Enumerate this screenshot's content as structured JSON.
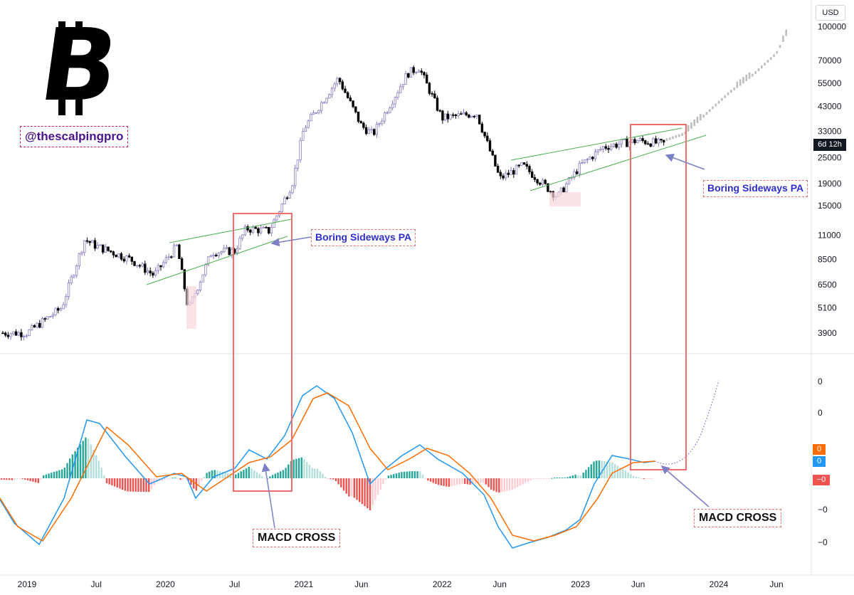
{
  "header": {
    "logo_glyph": "B",
    "handle": "@thescalpingpro",
    "currency": "USD",
    "timer": "6d 12h"
  },
  "annotations": {
    "pa_left": "Boring Sideways PA",
    "pa_right": "Boring Sideways PA",
    "macd_left": "MACD CROSS",
    "macd_right": "MACD CROSS"
  },
  "colors": {
    "up_candle": "#8e7cc3",
    "down_candle": "#000000",
    "projection": "#bdbdbd",
    "macd_line": "#2196f3",
    "signal_line": "#ff6d00",
    "hist_pos": "#26a69a",
    "hist_neg": "#ef5350",
    "channel": "#4caf50",
    "box": "#f26d6d",
    "annotation_text": "#2e2ecc",
    "handle_text": "#4a148c",
    "arrow": "#7a7fc6"
  },
  "chart_data": [
    {
      "type": "candlestick",
      "title": "",
      "log_scale": true,
      "price_axis_ticks": [
        "100000",
        "70000",
        "55000",
        "43000",
        "33000",
        "25000",
        "19000",
        "15000",
        "11000",
        "8500",
        "6500",
        "5100",
        "3900"
      ],
      "time_axis_ticks": [
        "2019",
        "Jul",
        "2020",
        "Jul",
        "2021",
        "Jun",
        "2022",
        "Jun",
        "2023",
        "Jun",
        "2024",
        "Jun"
      ],
      "approx_weekly_close_path": [
        [
          "2019-01",
          3900
        ],
        [
          "2019-04",
          5100
        ],
        [
          "2019-06",
          10500
        ],
        [
          "2019-07",
          9800
        ],
        [
          "2019-10",
          8500
        ],
        [
          "2019-12",
          7200
        ],
        [
          "2020-02",
          9800
        ],
        [
          "2020-03",
          5000
        ],
        [
          "2020-05",
          9200
        ],
        [
          "2020-07",
          9300
        ],
        [
          "2020-08",
          11800
        ],
        [
          "2020-10",
          11500
        ],
        [
          "2020-12",
          19000
        ],
        [
          "2021-01",
          34000
        ],
        [
          "2021-04",
          58000
        ],
        [
          "2021-06",
          35000
        ],
        [
          "2021-07",
          32000
        ],
        [
          "2021-10",
          61000
        ],
        [
          "2021-11",
          65000
        ],
        [
          "2022-01",
          38000
        ],
        [
          "2022-04",
          40000
        ],
        [
          "2022-06",
          20000
        ],
        [
          "2022-08",
          23000
        ],
        [
          "2022-11",
          16500
        ],
        [
          "2023-01",
          23000
        ],
        [
          "2023-03",
          28000
        ],
        [
          "2023-06",
          30000
        ],
        [
          "2023-08",
          29000
        ]
      ],
      "projection": [
        [
          "2023-10",
          32000
        ],
        [
          "2023-12",
          40000
        ],
        [
          "2024-02",
          50000
        ],
        [
          "2024-04",
          60000
        ],
        [
          "2024-06",
          75000
        ],
        [
          "2024-07",
          95000
        ]
      ]
    },
    {
      "type": "line",
      "title": "",
      "series": [
        {
          "name": "",
          "role": "MACD"
        },
        {
          "name": "",
          "role": "Signal"
        },
        {
          "name": "",
          "role": "Histogram"
        }
      ],
      "macd_axis_ticks": [
        "0",
        "0",
        "−0",
        "−0"
      ],
      "macd_value_labels": [
        "0",
        "0",
        "−0"
      ]
    }
  ]
}
